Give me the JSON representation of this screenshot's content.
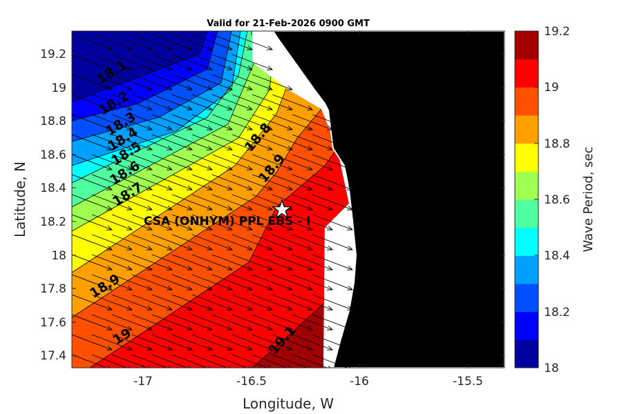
{
  "title": "Valid for 21-Feb-2026 0900 GMT",
  "xlabel": "Longitude, W",
  "ylabel": "Latitude, N",
  "colorbar_label": "Wave Period, sec",
  "x_ticks": [
    "-17",
    "-16.5",
    "-16",
    "-15.5"
  ],
  "y_ticks": [
    "19.2",
    "19",
    "18.8",
    "18.6",
    "18.4",
    "18.2",
    "18",
    "17.8",
    "17.6",
    "17.4"
  ],
  "colorbar_ticks": [
    "19.2",
    "19",
    "18.8",
    "18.6",
    "18.4",
    "18.2",
    "18"
  ],
  "site_label": "CSA (ONHYM) PPL EBS - I",
  "contour_labels": [
    "18.1",
    "18.2",
    "18.3",
    "18.4",
    "18.5",
    "18.6",
    "18.7",
    "18.8",
    "18.9",
    "18.9",
    "19",
    "19.1"
  ],
  "colors": {
    "land": "#000000",
    "no_data": "#ffffff",
    "levels": [
      "#00009f",
      "#0000ff",
      "#0050ff",
      "#00a0ff",
      "#00ffff",
      "#50ffa0",
      "#a0ff50",
      "#ffff00",
      "#ffa000",
      "#ff5000",
      "#ff0000",
      "#a00000"
    ]
  },
  "chart_data": {
    "type": "heatmap",
    "variable": "Wave Period, sec",
    "xlim": [
      -17.35,
      -15.35
    ],
    "ylim": [
      17.33,
      19.35
    ],
    "clim": [
      18,
      19.2
    ],
    "color_levels": [
      18.0,
      18.1,
      18.2,
      18.3,
      18.4,
      18.5,
      18.6,
      18.7,
      18.8,
      18.9,
      19.0,
      19.1,
      19.2
    ],
    "site": {
      "name": "CSA (ONHYM) PPL EBS - I",
      "lon": -16.35,
      "lat": 18.27
    },
    "wave_direction": "from west-northwest toward east-southeast"
  }
}
